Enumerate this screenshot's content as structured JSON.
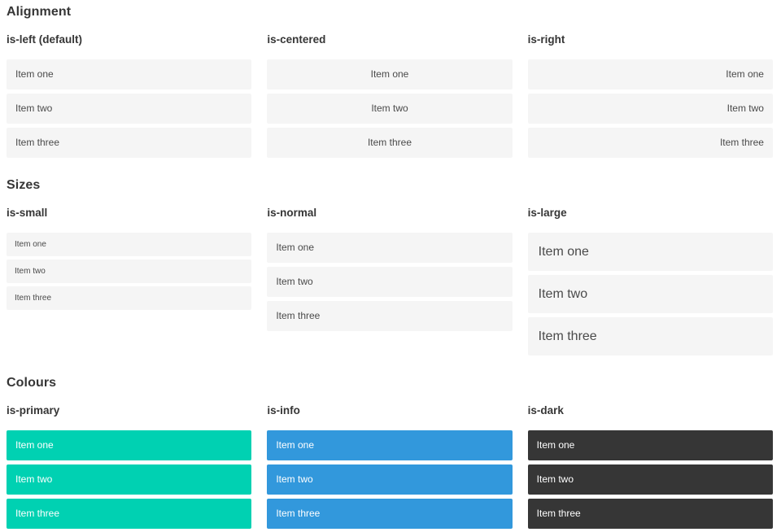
{
  "colors": {
    "item_background": "#f5f5f5",
    "item_text": "#4a4a4a",
    "heading_text": "#363636",
    "primary": "#00d1b2",
    "info": "#3298dc",
    "dark": "#363636",
    "colored_item_text": "#ffffff"
  },
  "sections": [
    {
      "title": "Alignment",
      "columns": [
        {
          "subtitle": "is-left (default)",
          "items": [
            "Item one",
            "Item two",
            "Item three"
          ]
        },
        {
          "subtitle": "is-centered",
          "items": [
            "Item one",
            "Item two",
            "Item three"
          ]
        },
        {
          "subtitle": "is-right",
          "items": [
            "Item one",
            "Item two",
            "Item three"
          ]
        }
      ]
    },
    {
      "title": "Sizes",
      "columns": [
        {
          "subtitle": "is-small",
          "items": [
            "Item one",
            "Item two",
            "Item three"
          ]
        },
        {
          "subtitle": "is-normal",
          "items": [
            "Item one",
            "Item two",
            "Item three"
          ]
        },
        {
          "subtitle": "is-large",
          "items": [
            "Item one",
            "Item two",
            "Item three"
          ]
        }
      ]
    },
    {
      "title": "Colours",
      "columns": [
        {
          "subtitle": "is-primary",
          "items": [
            "Item one",
            "Item two",
            "Item three"
          ]
        },
        {
          "subtitle": "is-info",
          "items": [
            "Item one",
            "Item two",
            "Item three"
          ]
        },
        {
          "subtitle": "is-dark",
          "items": [
            "Item one",
            "Item two",
            "Item three"
          ]
        }
      ]
    }
  ]
}
